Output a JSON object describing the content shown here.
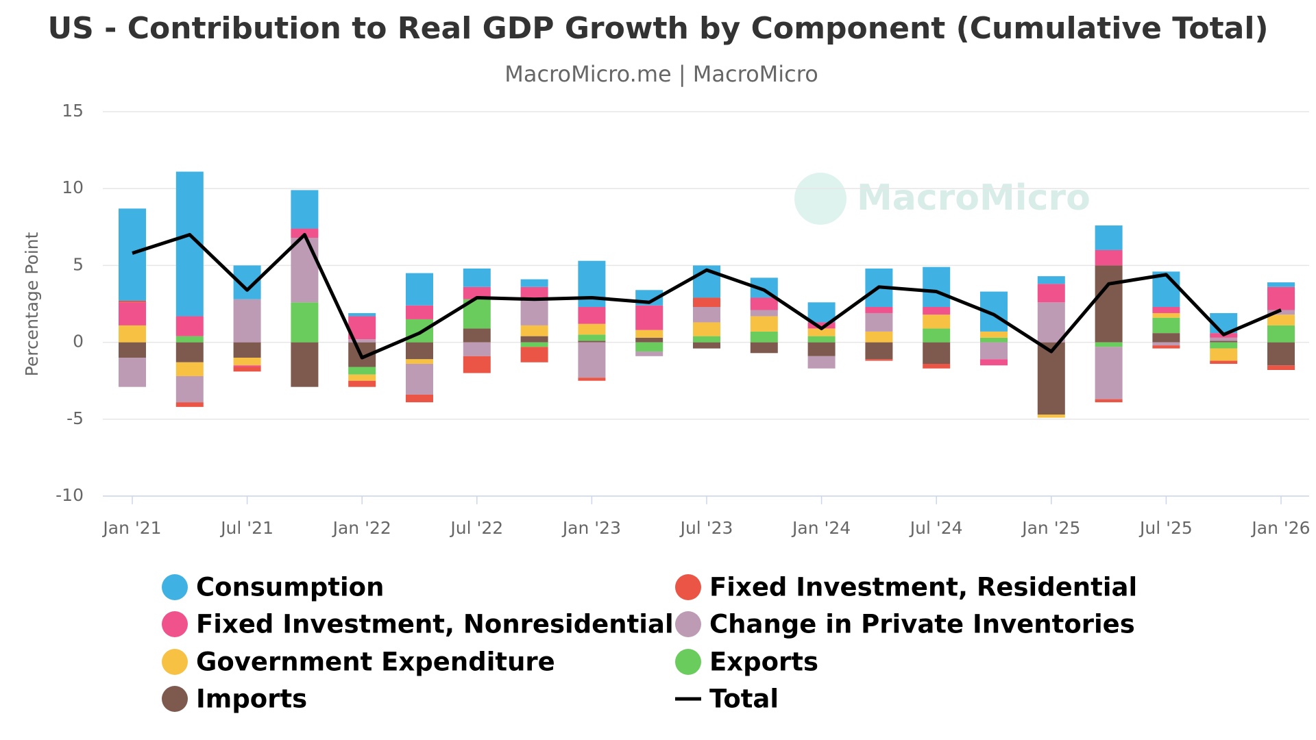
{
  "chart_data": {
    "type": "bar",
    "stacked": true,
    "title": "US - Contribution to Real GDP Growth by Component (Cumulative Total)",
    "subtitle": "MacroMicro.me | MacroMicro",
    "watermark": "MacroMicro",
    "y_label": "Percentage Point",
    "categories": [
      "Jan '21",
      null,
      "Jul '21",
      null,
      "Jan '22",
      null,
      "Jul '22",
      null,
      "Jan '23",
      null,
      "Jul '23",
      null,
      "Jan '24",
      null,
      "Jul '24",
      null,
      "Jan '25",
      null,
      "Jul '25",
      null,
      "Jan '26"
    ],
    "ylim": [
      -10,
      15
    ],
    "yticks": [
      -10,
      -5,
      0,
      5,
      10,
      15
    ],
    "grid": true,
    "series": [
      {
        "name": "Consumption",
        "color": "#3fb1e3",
        "values": [
          6.0,
          9.4,
          2.2,
          2.5,
          0.2,
          2.1,
          1.2,
          0.5,
          3.0,
          1.0,
          2.1,
          1.3,
          1.3,
          2.5,
          2.6,
          2.6,
          0.5,
          1.6,
          2.3,
          1.3,
          0.3
        ]
      },
      {
        "name": "Fixed Investment, Residential",
        "color": "#ea5545",
        "values": [
          0.1,
          -0.3,
          -0.3,
          0,
          -0.4,
          -0.5,
          -1.1,
          -1.0,
          -0.2,
          0,
          0.6,
          0,
          0,
          -0.1,
          -0.3,
          0,
          0,
          -0.2,
          -0.2,
          -0.2,
          -0.3
        ]
      },
      {
        "name": "Fixed Investment, Nonresidential",
        "color": "#f0528c",
        "values": [
          1.5,
          1.3,
          -0.1,
          0.6,
          1.5,
          0.9,
          0.8,
          0.7,
          1.1,
          1.6,
          0,
          0.8,
          0.4,
          0.4,
          0.5,
          -0.4,
          1.2,
          1.0,
          0.4,
          0.3,
          1.5
        ]
      },
      {
        "name": "Change in Private Inventories",
        "color": "#bd9bb4",
        "values": [
          -1.9,
          -1.7,
          2.8,
          4.2,
          0.2,
          -2.0,
          -0.9,
          1.8,
          -2.3,
          -0.3,
          1.0,
          0.4,
          -0.8,
          1.2,
          0,
          -1.1,
          2.6,
          -3.4,
          -0.2,
          0.2,
          0.3
        ]
      },
      {
        "name": "Government Expenditure",
        "color": "#f7c143",
        "values": [
          1.1,
          -0.9,
          -0.5,
          0,
          -0.4,
          -0.3,
          0,
          0.7,
          0.7,
          0.5,
          0.9,
          1.0,
          0.5,
          0.7,
          0.9,
          0.4,
          -0.2,
          0,
          0.3,
          -0.8,
          0.7
        ]
      },
      {
        "name": "Exports",
        "color": "#6acc5c",
        "values": [
          0,
          0.4,
          0,
          2.6,
          -0.5,
          1.5,
          1.9,
          -0.3,
          0.4,
          -0.6,
          0.4,
          0.7,
          0.4,
          0,
          0.9,
          0.3,
          0,
          -0.3,
          1.0,
          -0.4,
          1.1
        ]
      },
      {
        "name": "Imports",
        "color": "#7e5a4e",
        "values": [
          -1.0,
          -1.3,
          -1.0,
          -2.9,
          -1.6,
          -1.1,
          0.9,
          0.4,
          0.1,
          0.3,
          -0.4,
          -0.7,
          -0.9,
          -1.1,
          -1.4,
          0,
          -4.7,
          5.0,
          0.6,
          0.1,
          -1.5
        ]
      },
      {
        "name": "Total",
        "color": "#000000",
        "type": "line",
        "values": [
          5.8,
          7.0,
          3.4,
          7.0,
          -1.0,
          0.6,
          2.9,
          2.8,
          2.9,
          2.6,
          4.7,
          3.4,
          0.9,
          3.6,
          3.3,
          1.8,
          -0.6,
          3.8,
          4.4,
          0.5,
          2.1
        ]
      }
    ]
  }
}
